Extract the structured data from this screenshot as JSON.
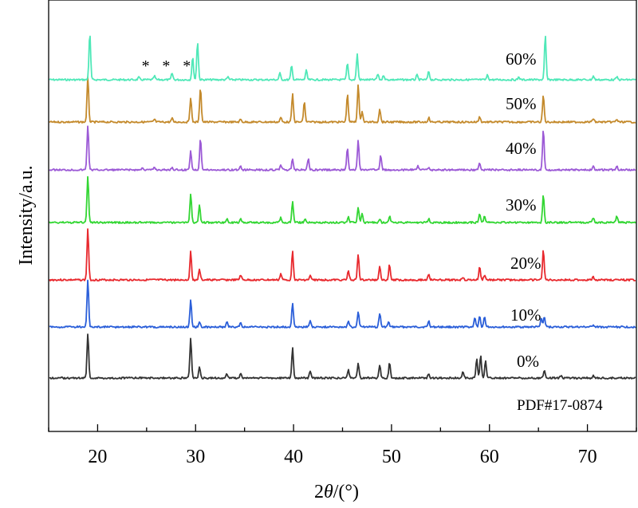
{
  "chart_data": {
    "type": "line",
    "xlabel_parts": [
      "2",
      "θ",
      "/(°)"
    ],
    "ylabel": "Intensity/a.u.",
    "xlim": [
      15,
      75
    ],
    "x_ticks": [
      20,
      30,
      40,
      50,
      60,
      70
    ],
    "grid": false,
    "legend": "none",
    "reference_label": "PDF#17-0874",
    "impurity_marker": "*",
    "impurity_marker_positions": [
      24.9,
      27.0,
      29.1
    ],
    "series": [
      {
        "name": "0%",
        "color": "#333333",
        "peaks": [
          [
            19.0,
            1.0
          ],
          [
            29.5,
            0.9
          ],
          [
            30.4,
            0.25
          ],
          [
            33.2,
            0.1
          ],
          [
            34.6,
            0.1
          ],
          [
            39.9,
            0.68
          ],
          [
            41.7,
            0.15
          ],
          [
            45.6,
            0.18
          ],
          [
            46.6,
            0.32
          ],
          [
            48.8,
            0.3
          ],
          [
            49.8,
            0.34
          ],
          [
            53.8,
            0.1
          ],
          [
            57.3,
            0.15
          ],
          [
            58.7,
            0.45
          ],
          [
            59.1,
            0.52
          ],
          [
            59.6,
            0.38
          ],
          [
            65.6,
            0.18
          ],
          [
            67.3,
            0.06
          ],
          [
            70.6,
            0.05
          ]
        ]
      },
      {
        "name": "10%",
        "color": "#2b5fd9",
        "peaks": [
          [
            19.0,
            1.0
          ],
          [
            29.5,
            0.58
          ],
          [
            30.4,
            0.12
          ],
          [
            33.2,
            0.1
          ],
          [
            34.6,
            0.1
          ],
          [
            39.9,
            0.52
          ],
          [
            41.7,
            0.15
          ],
          [
            45.6,
            0.14
          ],
          [
            46.6,
            0.34
          ],
          [
            48.8,
            0.3
          ],
          [
            49.7,
            0.1
          ],
          [
            53.8,
            0.13
          ],
          [
            58.5,
            0.2
          ],
          [
            59.0,
            0.22
          ],
          [
            59.5,
            0.22
          ],
          [
            65.3,
            0.2
          ],
          [
            65.6,
            0.22
          ],
          [
            70.6,
            0.05
          ]
        ]
      },
      {
        "name": "20%",
        "color": "#e8292e",
        "peaks": [
          [
            19.0,
            1.0
          ],
          [
            29.5,
            0.55
          ],
          [
            30.4,
            0.2
          ],
          [
            34.6,
            0.1
          ],
          [
            38.7,
            0.12
          ],
          [
            39.9,
            0.55
          ],
          [
            41.7,
            0.08
          ],
          [
            45.6,
            0.18
          ],
          [
            46.6,
            0.5
          ],
          [
            48.8,
            0.28
          ],
          [
            49.8,
            0.3
          ],
          [
            53.8,
            0.12
          ],
          [
            57.3,
            0.06
          ],
          [
            59.0,
            0.25
          ],
          [
            59.5,
            0.1
          ],
          [
            65.5,
            0.6
          ],
          [
            70.6,
            0.06
          ]
        ]
      },
      {
        "name": "30%",
        "color": "#33d633",
        "peaks": [
          [
            19.0,
            1.0
          ],
          [
            29.5,
            0.62
          ],
          [
            30.4,
            0.38
          ],
          [
            33.2,
            0.08
          ],
          [
            34.6,
            0.07
          ],
          [
            38.7,
            0.1
          ],
          [
            39.9,
            0.45
          ],
          [
            41.2,
            0.08
          ],
          [
            45.6,
            0.12
          ],
          [
            46.6,
            0.32
          ],
          [
            47.0,
            0.2
          ],
          [
            48.8,
            0.08
          ],
          [
            49.8,
            0.14
          ],
          [
            53.8,
            0.08
          ],
          [
            59.0,
            0.18
          ],
          [
            59.5,
            0.15
          ],
          [
            65.5,
            0.6
          ],
          [
            70.6,
            0.1
          ],
          [
            73.0,
            0.14
          ]
        ]
      },
      {
        "name": "40%",
        "color": "#9c5ad6",
        "peaks": [
          [
            19.0,
            1.0
          ],
          [
            24.6,
            0.05
          ],
          [
            25.8,
            0.06
          ],
          [
            27.6,
            0.06
          ],
          [
            29.5,
            0.42
          ],
          [
            30.5,
            0.72
          ],
          [
            34.6,
            0.08
          ],
          [
            38.7,
            0.12
          ],
          [
            39.9,
            0.25
          ],
          [
            41.5,
            0.25
          ],
          [
            45.5,
            0.5
          ],
          [
            46.6,
            0.65
          ],
          [
            48.9,
            0.32
          ],
          [
            52.7,
            0.08
          ],
          [
            53.8,
            0.06
          ],
          [
            59.0,
            0.15
          ],
          [
            65.5,
            0.9
          ],
          [
            70.6,
            0.08
          ],
          [
            73.0,
            0.08
          ]
        ]
      },
      {
        "name": "50%",
        "color": "#c48a2c",
        "peaks": [
          [
            19.0,
            1.0
          ],
          [
            25.8,
            0.06
          ],
          [
            27.6,
            0.08
          ],
          [
            29.5,
            0.55
          ],
          [
            30.5,
            0.78
          ],
          [
            34.6,
            0.06
          ],
          [
            38.7,
            0.1
          ],
          [
            39.9,
            0.62
          ],
          [
            41.1,
            0.45
          ],
          [
            45.5,
            0.62
          ],
          [
            46.6,
            0.85
          ],
          [
            47.0,
            0.25
          ],
          [
            48.8,
            0.3
          ],
          [
            53.8,
            0.1
          ],
          [
            59.0,
            0.12
          ],
          [
            65.5,
            0.6
          ],
          [
            70.6,
            0.08
          ],
          [
            73.0,
            0.06
          ]
        ]
      },
      {
        "name": "60%",
        "color": "#50e8b8",
        "peaks": [
          [
            19.2,
            1.0
          ],
          [
            24.2,
            0.05
          ],
          [
            25.8,
            0.08
          ],
          [
            27.6,
            0.14
          ],
          [
            29.7,
            0.48
          ],
          [
            30.2,
            0.82
          ],
          [
            33.3,
            0.06
          ],
          [
            38.6,
            0.14
          ],
          [
            39.8,
            0.3
          ],
          [
            41.3,
            0.2
          ],
          [
            45.5,
            0.35
          ],
          [
            46.5,
            0.55
          ],
          [
            48.6,
            0.12
          ],
          [
            49.2,
            0.1
          ],
          [
            52.6,
            0.1
          ],
          [
            53.8,
            0.18
          ],
          [
            59.8,
            0.1
          ],
          [
            63.0,
            0.06
          ],
          [
            65.7,
            0.95
          ],
          [
            70.6,
            0.08
          ],
          [
            73.0,
            0.06
          ]
        ]
      }
    ]
  }
}
